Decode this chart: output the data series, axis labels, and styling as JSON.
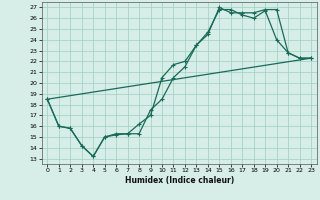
{
  "xlabel": "Humidex (Indice chaleur)",
  "bg_color": "#d6ede8",
  "grid_color": "#9ecfbf",
  "line_color": "#1a6a5a",
  "xlim": [
    -0.5,
    23.5
  ],
  "ylim": [
    12.5,
    27.5
  ],
  "yticks": [
    13,
    14,
    15,
    16,
    17,
    18,
    19,
    20,
    21,
    22,
    23,
    24,
    25,
    26,
    27
  ],
  "xticks": [
    0,
    1,
    2,
    3,
    4,
    5,
    6,
    7,
    8,
    9,
    10,
    11,
    12,
    13,
    14,
    15,
    16,
    17,
    18,
    19,
    20,
    21,
    22,
    23
  ],
  "line1_x": [
    0,
    1,
    2,
    3,
    4,
    5,
    6,
    7,
    8,
    9,
    10,
    11,
    12,
    13,
    14,
    15,
    16,
    17,
    18,
    19,
    20,
    21,
    22,
    23
  ],
  "line1_y": [
    18.5,
    16.0,
    15.8,
    14.2,
    13.2,
    15.0,
    15.2,
    15.3,
    15.3,
    17.5,
    18.5,
    20.5,
    21.5,
    23.5,
    24.7,
    26.8,
    26.8,
    26.3,
    26.0,
    26.7,
    24.0,
    22.8,
    22.3,
    22.3
  ],
  "line2_x": [
    0,
    1,
    2,
    3,
    4,
    5,
    6,
    7,
    8,
    9,
    10,
    11,
    12,
    13,
    14,
    15,
    16,
    17,
    18,
    19,
    20,
    21,
    22,
    23
  ],
  "line2_y": [
    18.5,
    16.0,
    15.8,
    14.2,
    13.2,
    15.0,
    15.3,
    15.3,
    16.2,
    17.0,
    20.5,
    21.7,
    22.0,
    23.5,
    24.5,
    27.0,
    26.5,
    26.5,
    26.5,
    26.8,
    26.8,
    22.8,
    22.3,
    22.3
  ],
  "line3_x": [
    0,
    23
  ],
  "line3_y": [
    18.5,
    22.3
  ]
}
